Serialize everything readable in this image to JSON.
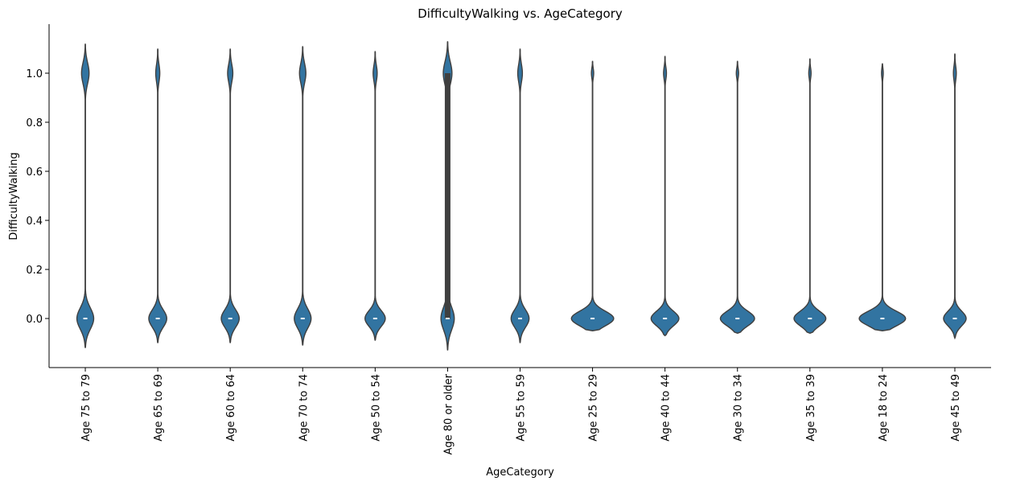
{
  "chart_data": {
    "type": "violin",
    "title": "DifficultyWalking vs. AgeCategory",
    "xlabel": "AgeCategory",
    "ylabel": "DifficultyWalking",
    "ylim": [
      -0.2,
      1.2
    ],
    "yticks": [
      0.0,
      0.2,
      0.4,
      0.6,
      0.8,
      1.0
    ],
    "ytick_labels": [
      "0.0",
      "0.2",
      "0.4",
      "0.6",
      "0.8",
      "1.0"
    ],
    "grid": false,
    "color": "#3274a1",
    "edge_color": "#3f3f3f",
    "categories": [
      "Age 75 to 79",
      "Age 65 to 69",
      "Age 60 to 64",
      "Age 70 to 74",
      "Age 50 to 54",
      "Age 80 or older",
      "Age 55 to 59",
      "Age 25 to 29",
      "Age 40 to 44",
      "Age 30 to 34",
      "Age 35 to 39",
      "Age 18 to 24",
      "Age 45 to 49"
    ],
    "violins": [
      {
        "category": "Age 75 to 79",
        "min": -0.12,
        "max": 1.12,
        "median": 0.0,
        "q1": 0.0,
        "q3": 0.0,
        "w0": 0.29,
        "w1": 0.13
      },
      {
        "category": "Age 65 to 69",
        "min": -0.1,
        "max": 1.1,
        "median": 0.0,
        "q1": 0.0,
        "q3": 0.0,
        "w0": 0.31,
        "w1": 0.07
      },
      {
        "category": "Age 60 to 64",
        "min": -0.1,
        "max": 1.1,
        "median": 0.0,
        "q1": 0.0,
        "q3": 0.0,
        "w0": 0.31,
        "w1": 0.09
      },
      {
        "category": "Age 70 to 74",
        "min": -0.11,
        "max": 1.11,
        "median": 0.0,
        "q1": 0.0,
        "q3": 0.0,
        "w0": 0.29,
        "w1": 0.11
      },
      {
        "category": "Age 50 to 54",
        "min": -0.09,
        "max": 1.09,
        "median": 0.0,
        "q1": 0.0,
        "q3": 0.0,
        "w0": 0.35,
        "w1": 0.07
      },
      {
        "category": "Age 80 or older",
        "min": -0.13,
        "max": 1.13,
        "median": 0.0,
        "q1": 0.0,
        "q3": 1.0,
        "w0": 0.23,
        "w1": 0.15
      },
      {
        "category": "Age 55 to 59",
        "min": -0.1,
        "max": 1.1,
        "median": 0.0,
        "q1": 0.0,
        "q3": 0.0,
        "w0": 0.31,
        "w1": 0.08
      },
      {
        "category": "Age 25 to 29",
        "min": -0.05,
        "max": 1.05,
        "median": 0.0,
        "q1": 0.0,
        "q3": 0.0,
        "w0": 0.73,
        "w1": 0.04
      },
      {
        "category": "Age 40 to 44",
        "min": -0.07,
        "max": 1.07,
        "median": 0.0,
        "q1": 0.0,
        "q3": 0.0,
        "w0": 0.48,
        "w1": 0.05
      },
      {
        "category": "Age 30 to 34",
        "min": -0.06,
        "max": 1.05,
        "median": 0.0,
        "q1": 0.0,
        "q3": 0.0,
        "w0": 0.59,
        "w1": 0.04
      },
      {
        "category": "Age 35 to 39",
        "min": -0.06,
        "max": 1.06,
        "median": 0.0,
        "q1": 0.0,
        "q3": 0.0,
        "w0": 0.55,
        "w1": 0.04
      },
      {
        "category": "Age 18 to 24",
        "min": -0.05,
        "max": 1.04,
        "median": 0.0,
        "q1": 0.0,
        "q3": 0.0,
        "w0": 0.8,
        "w1": 0.03
      },
      {
        "category": "Age 45 to 49",
        "min": -0.08,
        "max": 1.08,
        "median": 0.0,
        "q1": 0.0,
        "q3": 0.0,
        "w0": 0.39,
        "w1": 0.05
      }
    ]
  }
}
